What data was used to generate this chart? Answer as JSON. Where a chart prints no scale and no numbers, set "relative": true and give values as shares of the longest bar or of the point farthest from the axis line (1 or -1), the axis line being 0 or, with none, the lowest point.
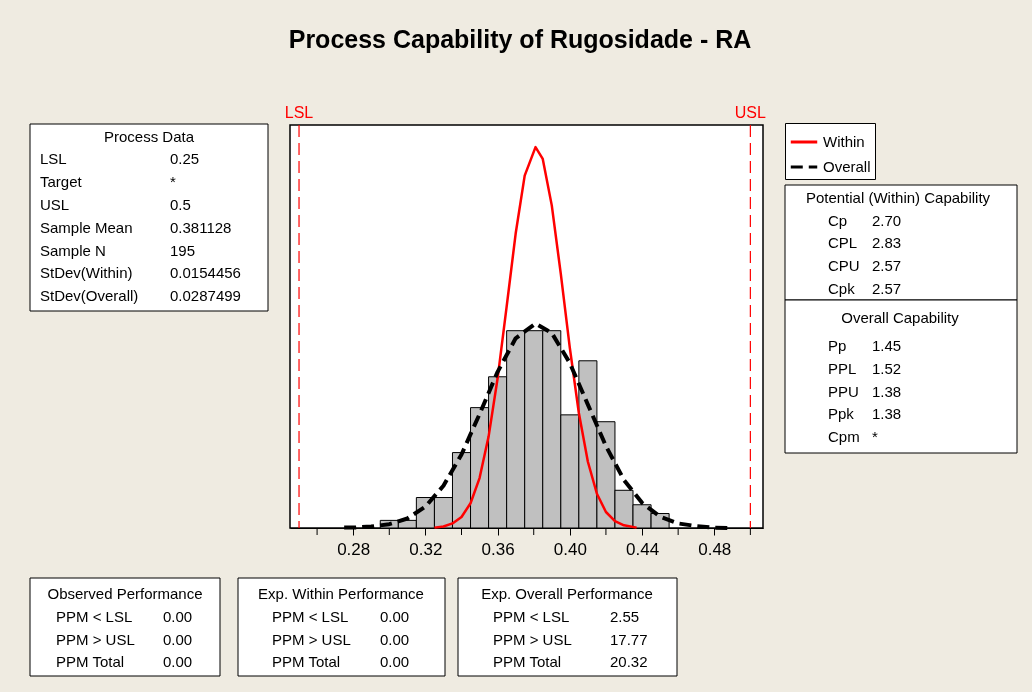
{
  "chart_data": {
    "type": "histogram",
    "title": "Process Capability of Rugosidade - RA",
    "relative": true,
    "bins": [
      0.295,
      0.305,
      0.315,
      0.325,
      0.335,
      0.345,
      0.355,
      0.365,
      0.375,
      0.385,
      0.395,
      0.405,
      0.415,
      0.425,
      0.435,
      0.445,
      0.455
    ],
    "values": [
      0.02,
      0.02,
      0.08,
      0.08,
      0.198,
      0.316,
      0.397,
      0.518,
      0.518,
      0.518,
      0.297,
      0.439,
      0.279,
      0.099,
      0.061,
      0.038
    ],
    "color": "#c0c0c0",
    "series": [
      {
        "name": "Within",
        "type": "line",
        "color": "#ff0000",
        "line_style": "solid",
        "x": [
          0.325,
          0.33,
          0.335,
          0.34,
          0.345,
          0.35,
          0.355,
          0.36,
          0.365,
          0.37,
          0.375,
          0.381,
          0.385,
          0.39,
          0.395,
          0.4,
          0.405,
          0.41,
          0.415,
          0.42,
          0.425,
          0.43,
          0.437
        ],
        "values": [
          0.001,
          0.004,
          0.012,
          0.029,
          0.065,
          0.131,
          0.24,
          0.393,
          0.581,
          0.773,
          0.925,
          1.0,
          0.969,
          0.847,
          0.667,
          0.473,
          0.302,
          0.174,
          0.09,
          0.042,
          0.018,
          0.007,
          0.001
        ]
      },
      {
        "name": "Overall",
        "type": "line",
        "color": "#000000",
        "line_style": "dashed",
        "x": [
          0.275,
          0.28,
          0.29,
          0.3,
          0.31,
          0.32,
          0.33,
          0.34,
          0.35,
          0.36,
          0.37,
          0.381,
          0.39,
          0.4,
          0.41,
          0.42,
          0.43,
          0.44,
          0.45,
          0.46,
          0.47,
          0.48,
          0.49
        ],
        "values": [
          0.001,
          0.001,
          0.004,
          0.01,
          0.025,
          0.056,
          0.111,
          0.193,
          0.299,
          0.41,
          0.498,
          0.537,
          0.512,
          0.433,
          0.324,
          0.215,
          0.126,
          0.066,
          0.03,
          0.012,
          0.005,
          0.001,
          0.0
        ]
      }
    ],
    "xlim": [
      0.245,
      0.507
    ],
    "xticks": [
      {
        "value": 0.26,
        "label": null
      },
      0.28,
      {
        "value": 0.3,
        "label": null
      },
      0.32,
      {
        "value": 0.34,
        "label": null
      },
      0.36,
      {
        "value": 0.38,
        "label": null
      },
      {
        "value": 0.4,
        "label": "0.40"
      },
      {
        "value": 0.42,
        "label": null
      },
      0.44,
      {
        "value": 0.46,
        "label": null
      },
      0.48,
      {
        "value": 0.5,
        "label": null
      }
    ],
    "tick_labels": "x",
    "grid": false,
    "legend": "top right",
    "ref_lines": [
      {
        "axis": "x",
        "value": 0.25,
        "label": "LSL",
        "color": "#ff0000",
        "line_style": "dashed"
      },
      {
        "axis": "x",
        "value": 0.5,
        "label": "USL",
        "color": "#ff0000",
        "line_style": "dashed"
      }
    ],
    "annotations": [
      "Process Data",
      "LSL",
      "0.25",
      "Target",
      "*",
      "USL",
      "0.5",
      "Sample Mean",
      "0.381128",
      "Sample N",
      "195",
      "StDev(Within)",
      "0.0154456",
      "StDev(Overall)",
      "0.0287499",
      "Potential (Within) Capability",
      "Cp",
      "2.70",
      "CPL",
      "2.83",
      "CPU",
      "2.57",
      "Cpk",
      "2.57",
      "Overall Capability",
      "Pp",
      "1.45",
      "PPL",
      "1.52",
      "PPU",
      "1.38",
      "Ppk",
      "1.38",
      "Cpm",
      "*",
      "Observed Performance",
      "PPM < LSL",
      "0.00",
      "PPM > USL",
      "0.00",
      "PPM Total",
      "0.00",
      "Exp. Within Performance",
      "PPM < LSL",
      "0.00",
      "PPM > USL",
      "0.00",
      "PPM Total",
      "0.00",
      "Exp. Overall Performance",
      "PPM < LSL",
      "2.55",
      "PPM > USL",
      "17.77",
      "PPM Total",
      "20.32"
    ]
  }
}
